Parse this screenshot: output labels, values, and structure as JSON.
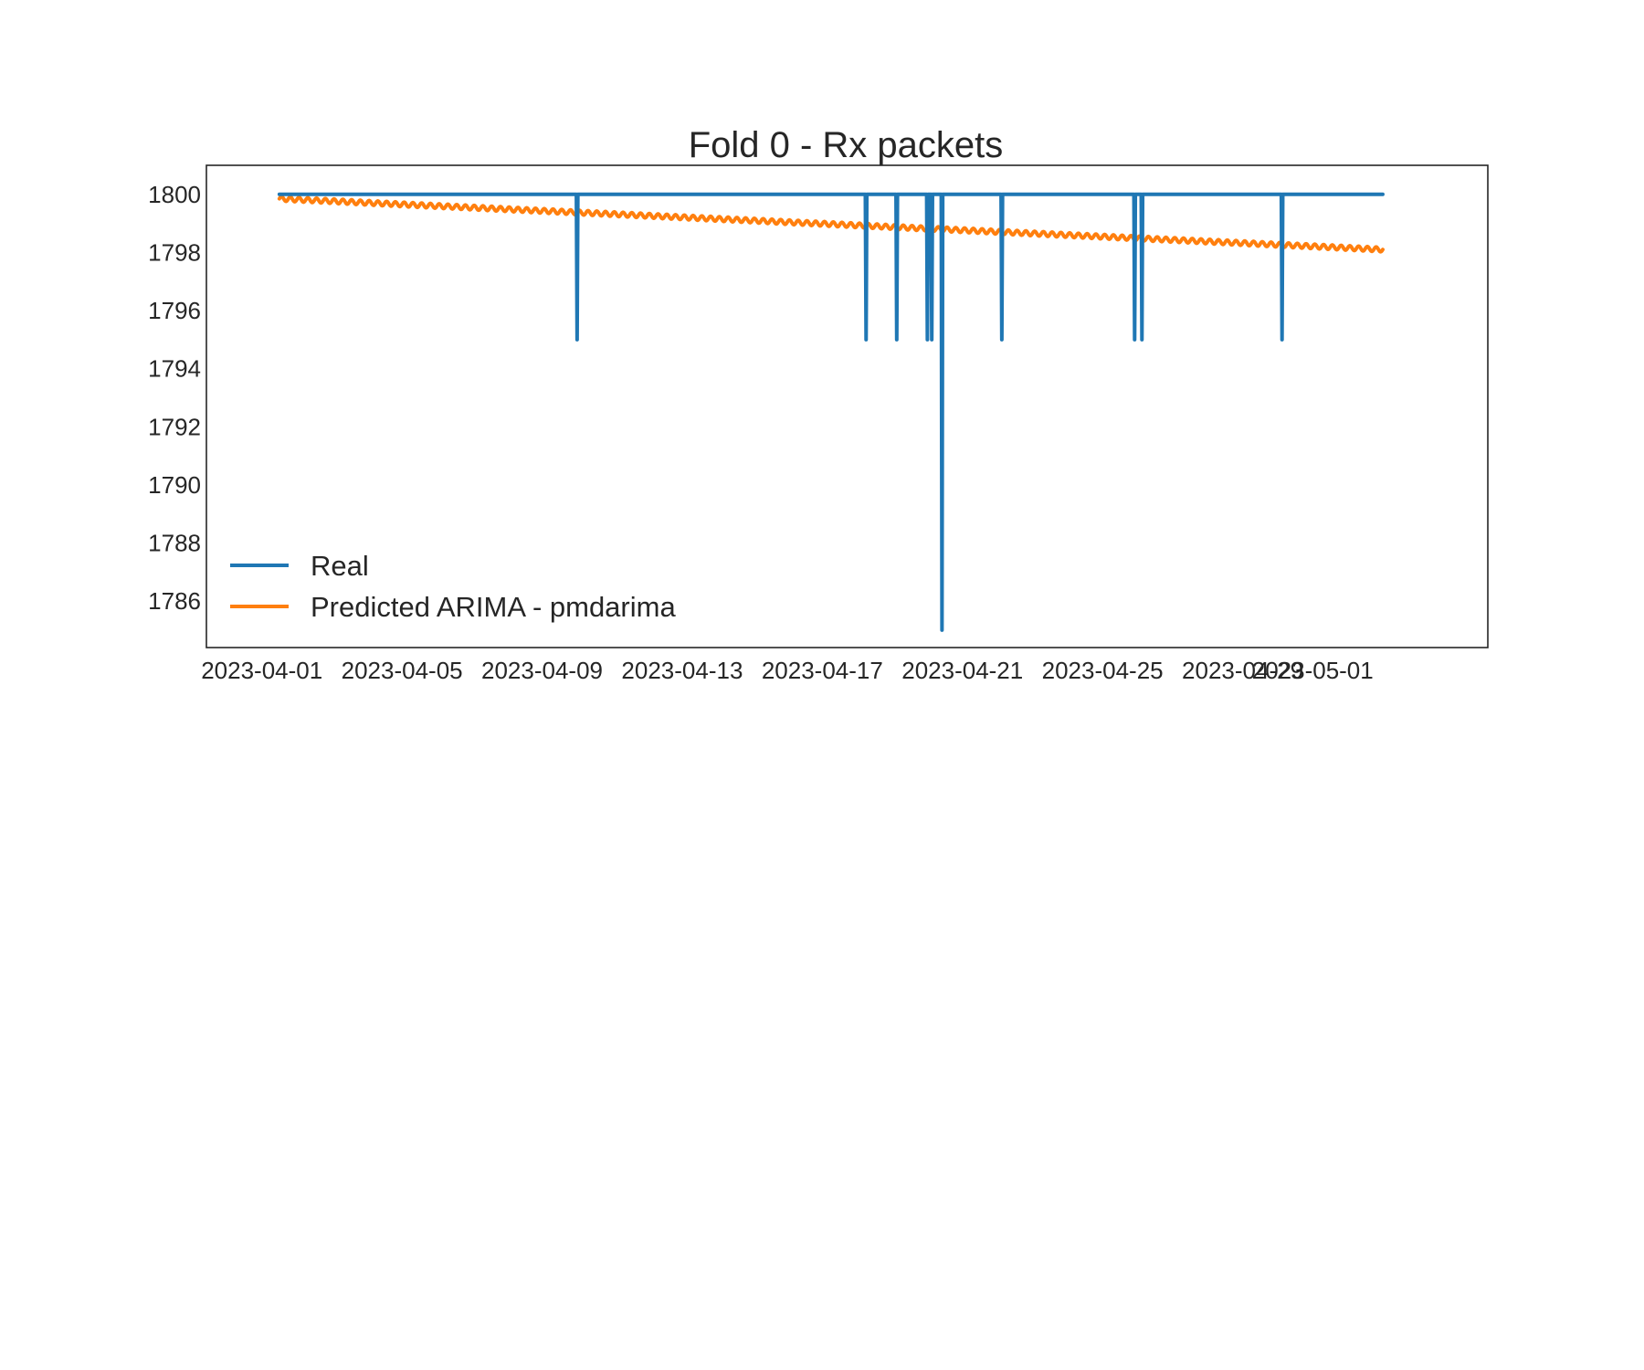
{
  "chart_data": {
    "type": "line",
    "title": "Fold 0 - Rx packets",
    "xlabel": "",
    "ylabel": "",
    "xlim": [
      "2023-03-30T10:00",
      "2023-05-06T00:00"
    ],
    "ylim": [
      1784.4,
      1801.0
    ],
    "grid": false,
    "legend_position": "bottom-left",
    "y_ticks": [
      "1786",
      "1788",
      "1790",
      "1792",
      "1794",
      "1796",
      "1798",
      "1800"
    ],
    "x_ticks": [
      "2023-04-01",
      "2023-04-05",
      "2023-04-09",
      "2023-04-13",
      "2023-04-17",
      "2023-04-21",
      "2023-04-25",
      "2023-04-29",
      "2023-05-01"
    ],
    "series": [
      {
        "name": "Real",
        "color": "#1f77b4",
        "baseline": 1800,
        "start": "2023-04-01T12:00",
        "end": "2023-05-03T00:00",
        "dips": [
          {
            "x": "2023-04-10T00:00",
            "y": 1795
          },
          {
            "x": "2023-04-18T06:00",
            "y": 1795
          },
          {
            "x": "2023-04-19T03:00",
            "y": 1795
          },
          {
            "x": "2023-04-20T00:00",
            "y": 1795
          },
          {
            "x": "2023-04-20T03:00",
            "y": 1795
          },
          {
            "x": "2023-04-20T10:00",
            "y": 1785
          },
          {
            "x": "2023-04-22T03:00",
            "y": 1795
          },
          {
            "x": "2023-04-25T22:00",
            "y": 1795
          },
          {
            "x": "2023-04-26T03:00",
            "y": 1795
          },
          {
            "x": "2023-04-30T03:00",
            "y": 1795
          }
        ]
      },
      {
        "name": "Predicted ARIMA - pmdarima",
        "color": "#ff7f0e",
        "start": "2023-04-01T12:00",
        "end": "2023-05-03T00:00",
        "y_start": 1799.85,
        "y_end": 1798.1,
        "oscillation_amplitude": 0.08,
        "oscillation_period_hours": 6
      }
    ]
  }
}
